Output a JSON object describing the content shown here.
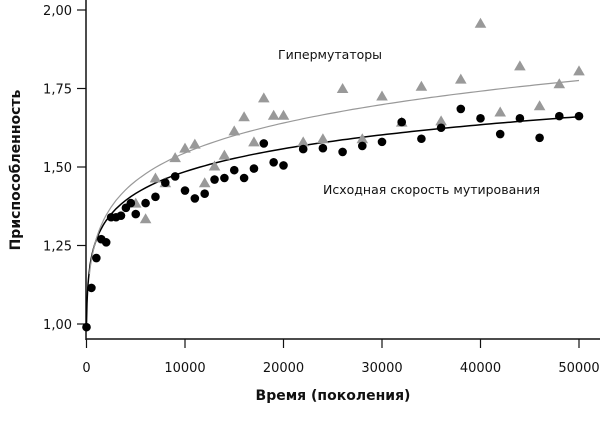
{
  "chart_data": {
    "type": "scatter",
    "title": "",
    "xlabel": "Время (поколения)",
    "ylabel": "Приспособленность",
    "xlim": [
      0,
      50000
    ],
    "ylim": [
      0.95,
      2.03
    ],
    "x_ticks": [
      "0",
      "10000",
      "20000",
      "30000",
      "40000",
      "50000"
    ],
    "y_ticks": [
      "1,00",
      "1,25",
      "1,50",
      "1,75",
      "2,00"
    ],
    "grid": false,
    "legend": "none",
    "annotations": {
      "hypermutators": "Гипермутаторы",
      "baseline": "Исходная скорость мутирования"
    },
    "series": [
      {
        "name": "Исходная скорость мутирования",
        "marker": "circle",
        "color": "#000000",
        "trend": true,
        "x": [
          0,
          500,
          1000,
          1500,
          2000,
          2500,
          3000,
          3500,
          4000,
          4500,
          5000,
          6000,
          7000,
          8000,
          9000,
          10000,
          11000,
          12000,
          13000,
          14000,
          15000,
          16000,
          17000,
          18000,
          19000,
          20000,
          22000,
          24000,
          26000,
          28000,
          30000,
          32000,
          34000,
          36000,
          38000,
          40000,
          42000,
          44000,
          46000,
          48000,
          50000
        ],
        "y": [
          0.99,
          1.115,
          1.21,
          1.27,
          1.26,
          1.34,
          1.34,
          1.345,
          1.37,
          1.385,
          1.35,
          1.385,
          1.405,
          1.45,
          1.47,
          1.425,
          1.4,
          1.415,
          1.46,
          1.465,
          1.49,
          1.465,
          1.495,
          1.575,
          1.515,
          1.505,
          1.557,
          1.56,
          1.548,
          1.567,
          1.58,
          1.643,
          1.59,
          1.625,
          1.685,
          1.655,
          1.605,
          1.655,
          1.593,
          1.662,
          1.662
        ]
      },
      {
        "name": "Гипермутаторы",
        "marker": "triangle",
        "color": "#999999",
        "trend": true,
        "x": [
          5000,
          6000,
          7000,
          8000,
          9000,
          10000,
          11000,
          12000,
          13000,
          14000,
          15000,
          16000,
          17000,
          18000,
          19000,
          20000,
          22000,
          24000,
          26000,
          28000,
          30000,
          32000,
          34000,
          36000,
          38000,
          40000,
          42000,
          44000,
          46000,
          48000,
          50000
        ],
        "y": [
          1.385,
          1.335,
          1.465,
          1.45,
          1.53,
          1.56,
          1.573,
          1.45,
          1.503,
          1.538,
          1.615,
          1.66,
          1.58,
          1.72,
          1.665,
          1.665,
          1.58,
          1.59,
          1.75,
          1.59,
          1.726,
          1.643,
          1.757,
          1.647,
          1.78,
          1.958,
          1.675,
          1.822,
          1.695,
          1.765,
          1.806
        ]
      }
    ]
  }
}
